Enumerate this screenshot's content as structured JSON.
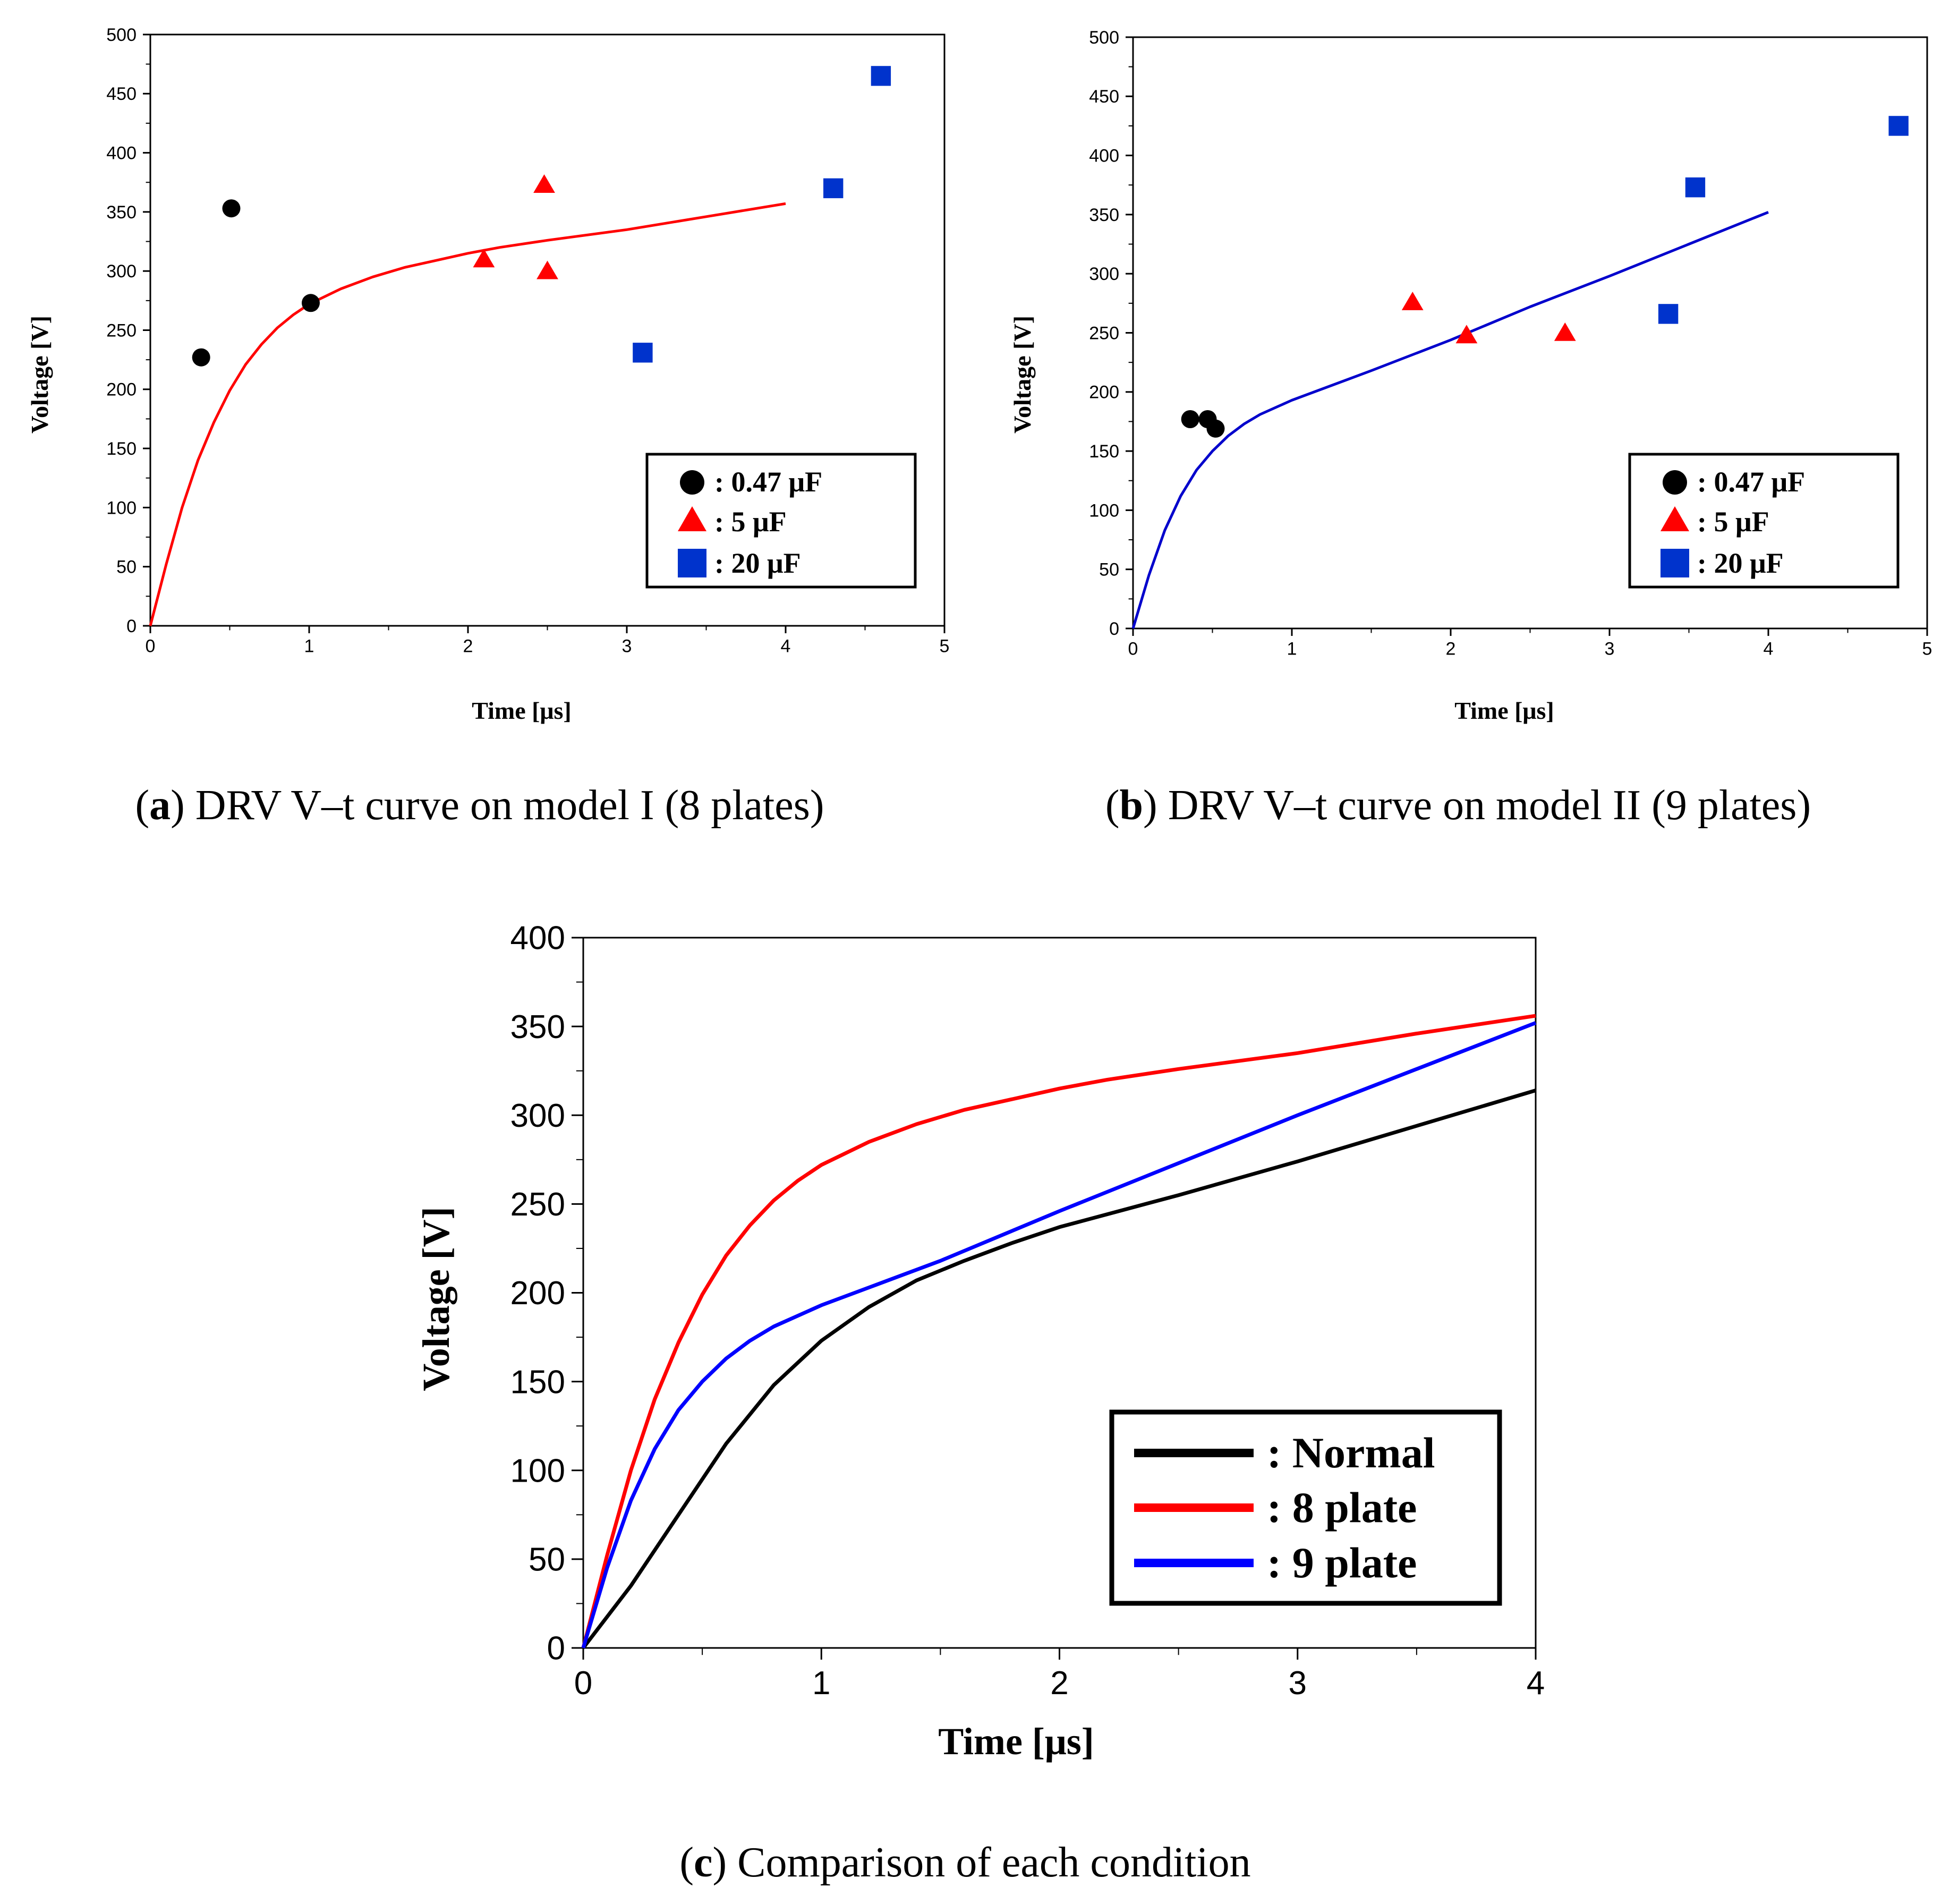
{
  "chart_data": [
    {
      "type": "scatter",
      "caption": {
        "letter": "a",
        "text": ") DRV V–t curve on model I (8 plates)"
      },
      "xlabel": "Time [μs]",
      "ylabel": "Voltage [V]",
      "xlim": [
        0,
        5
      ],
      "ylim": [
        0,
        500
      ],
      "x_ticks": [
        "0",
        "1",
        "2",
        "3",
        "4",
        "5"
      ],
      "y_ticks": [
        "0",
        "50",
        "100",
        "150",
        "200",
        "250",
        "300",
        "350",
        "400",
        "450",
        "500"
      ],
      "legend_position": "bottom-right",
      "series": [
        {
          "name": ": 0.47 μF",
          "marker": "circle",
          "color": "#000000",
          "points": [
            [
              0.32,
              227
            ],
            [
              0.51,
              353
            ],
            [
              1.01,
              273
            ]
          ]
        },
        {
          "name": ": 5 μF",
          "marker": "triangle",
          "color": "#ff0000",
          "points": [
            [
              2.1,
              310
            ],
            [
              2.48,
              373
            ],
            [
              2.5,
              300
            ]
          ]
        },
        {
          "name": ": 20 μF",
          "marker": "square",
          "color": "#0033cc",
          "points": [
            [
              3.1,
              231
            ],
            [
              4.3,
              370
            ],
            [
              4.6,
              465
            ]
          ]
        }
      ],
      "fit_curve": {
        "color": "#ff0000",
        "points": [
          [
            0,
            0
          ],
          [
            0.1,
            52
          ],
          [
            0.2,
            100
          ],
          [
            0.3,
            140
          ],
          [
            0.4,
            172
          ],
          [
            0.5,
            199
          ],
          [
            0.6,
            221
          ],
          [
            0.7,
            238
          ],
          [
            0.8,
            252
          ],
          [
            0.9,
            263
          ],
          [
            1.0,
            272
          ],
          [
            1.2,
            285
          ],
          [
            1.4,
            295
          ],
          [
            1.6,
            303
          ],
          [
            1.8,
            309
          ],
          [
            2.0,
            315
          ],
          [
            2.2,
            320
          ],
          [
            2.5,
            326
          ],
          [
            3.0,
            335
          ],
          [
            3.5,
            346
          ],
          [
            4.0,
            357
          ]
        ]
      }
    },
    {
      "type": "scatter",
      "caption": {
        "letter": "b",
        "text": ") DRV V–t curve on model II (9 plates)"
      },
      "xlabel": "Time [μs]",
      "ylabel": "Voltage [V]",
      "xlim": [
        0,
        5
      ],
      "ylim": [
        0,
        500
      ],
      "x_ticks": [
        "0",
        "1",
        "2",
        "3",
        "4",
        "5"
      ],
      "y_ticks": [
        "0",
        "50",
        "100",
        "150",
        "200",
        "250",
        "300",
        "350",
        "400",
        "450",
        "500"
      ],
      "legend_position": "bottom-right",
      "series": [
        {
          "name": ": 0.47 μF",
          "marker": "circle",
          "color": "#000000",
          "points": [
            [
              0.36,
              177
            ],
            [
              0.47,
              177
            ],
            [
              0.52,
              169
            ]
          ]
        },
        {
          "name": ": 5 μF",
          "marker": "triangle",
          "color": "#ff0000",
          "points": [
            [
              1.76,
              276
            ],
            [
              2.1,
              248
            ],
            [
              2.72,
              250
            ]
          ]
        },
        {
          "name": ": 20 μF",
          "marker": "square",
          "color": "#0033cc",
          "points": [
            [
              3.37,
              266
            ],
            [
              3.54,
              373
            ],
            [
              4.82,
              425
            ]
          ]
        }
      ],
      "fit_curve": {
        "color": "#0000cc",
        "points": [
          [
            0,
            0
          ],
          [
            0.1,
            45
          ],
          [
            0.2,
            83
          ],
          [
            0.3,
            112
          ],
          [
            0.4,
            134
          ],
          [
            0.5,
            150
          ],
          [
            0.6,
            163
          ],
          [
            0.7,
            173
          ],
          [
            0.8,
            181
          ],
          [
            1.0,
            193
          ],
          [
            1.2,
            203
          ],
          [
            1.5,
            218
          ],
          [
            2.0,
            244
          ],
          [
            2.5,
            272
          ],
          [
            3.0,
            298
          ],
          [
            3.5,
            325
          ],
          [
            4.0,
            352
          ]
        ]
      }
    },
    {
      "type": "line",
      "caption": {
        "letter": "c",
        "text": ") Comparison of each condition"
      },
      "xlabel": "Time [μs]",
      "ylabel": "Voltage [V]",
      "xlim": [
        0,
        4
      ],
      "ylim": [
        0,
        400
      ],
      "x_ticks": [
        "0",
        "1",
        "2",
        "3",
        "4"
      ],
      "y_ticks": [
        "0",
        "50",
        "100",
        "150",
        "200",
        "250",
        "300",
        "350",
        "400"
      ],
      "legend_position": "bottom-right",
      "series": [
        {
          "name": ": Normal",
          "color": "#000000",
          "points": [
            [
              0,
              0
            ],
            [
              0.2,
              35
            ],
            [
              0.4,
              75
            ],
            [
              0.6,
              115
            ],
            [
              0.8,
              148
            ],
            [
              1.0,
              173
            ],
            [
              1.2,
              192
            ],
            [
              1.4,
              207
            ],
            [
              1.6,
              218
            ],
            [
              1.8,
              228
            ],
            [
              2.0,
              237
            ],
            [
              2.5,
              255
            ],
            [
              3.0,
              274
            ],
            [
              3.5,
              294
            ],
            [
              4.0,
              314
            ]
          ]
        },
        {
          "name": ": 8 plate",
          "color": "#ff0000",
          "points": [
            [
              0,
              0
            ],
            [
              0.1,
              52
            ],
            [
              0.2,
              100
            ],
            [
              0.3,
              140
            ],
            [
              0.4,
              172
            ],
            [
              0.5,
              199
            ],
            [
              0.6,
              221
            ],
            [
              0.7,
              238
            ],
            [
              0.8,
              252
            ],
            [
              0.9,
              263
            ],
            [
              1.0,
              272
            ],
            [
              1.2,
              285
            ],
            [
              1.4,
              295
            ],
            [
              1.6,
              303
            ],
            [
              1.8,
              309
            ],
            [
              2.0,
              315
            ],
            [
              2.2,
              320
            ],
            [
              2.5,
              326
            ],
            [
              3.0,
              335
            ],
            [
              3.5,
              346
            ],
            [
              4.0,
              356
            ]
          ]
        },
        {
          "name": ": 9 plate",
          "color": "#0000ff",
          "points": [
            [
              0,
              0
            ],
            [
              0.1,
              45
            ],
            [
              0.2,
              83
            ],
            [
              0.3,
              112
            ],
            [
              0.4,
              134
            ],
            [
              0.5,
              150
            ],
            [
              0.6,
              163
            ],
            [
              0.7,
              173
            ],
            [
              0.8,
              181
            ],
            [
              1.0,
              193
            ],
            [
              1.2,
              203
            ],
            [
              1.5,
              218
            ],
            [
              2.0,
              246
            ],
            [
              2.5,
              273
            ],
            [
              3.0,
              300
            ],
            [
              3.5,
              326
            ],
            [
              4.0,
              352
            ]
          ]
        }
      ]
    }
  ]
}
